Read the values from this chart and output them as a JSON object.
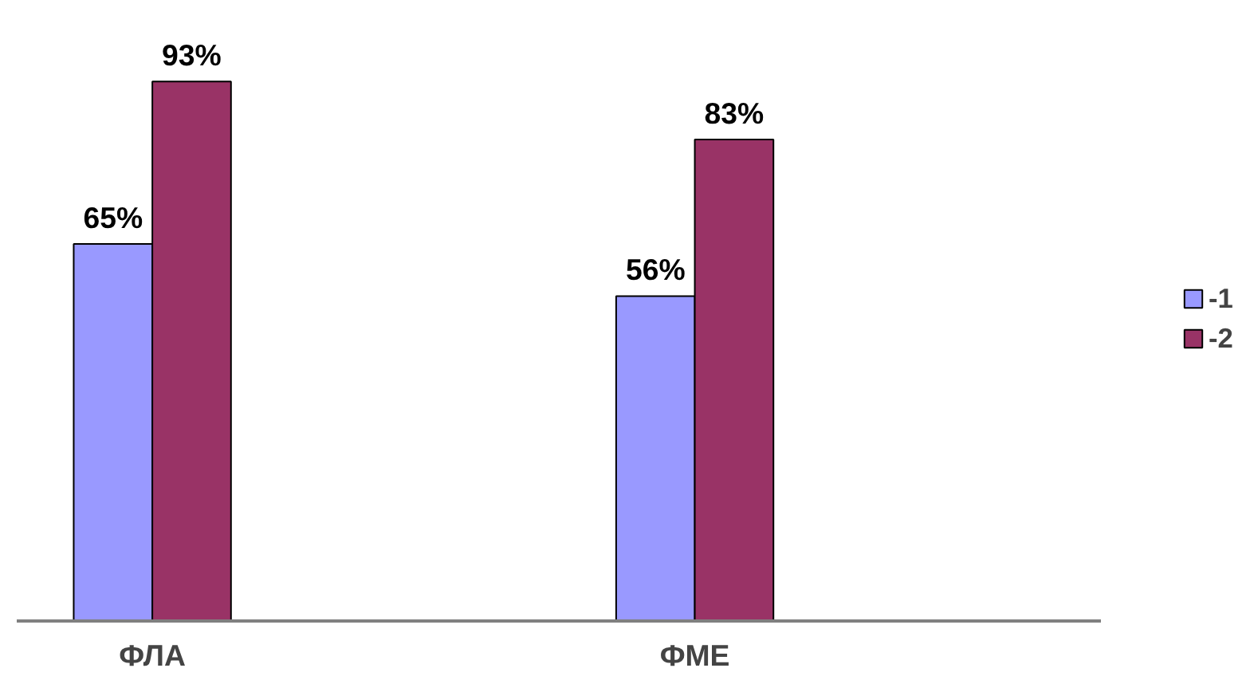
{
  "chart_data": {
    "type": "bar",
    "categories": [
      "ФЛА",
      null,
      "ФМЕ",
      null
    ],
    "series": [
      {
        "name": "-1",
        "color": "#9999ff",
        "values": [
          65,
          null,
          56,
          null
        ],
        "value_labels": [
          "65%",
          null,
          "56%",
          null
        ]
      },
      {
        "name": "-2",
        "color": "#993366",
        "values": [
          93,
          null,
          83,
          null
        ],
        "value_labels": [
          "93%",
          null,
          "83%",
          null
        ]
      }
    ],
    "legend": "right",
    "grid": false
  }
}
